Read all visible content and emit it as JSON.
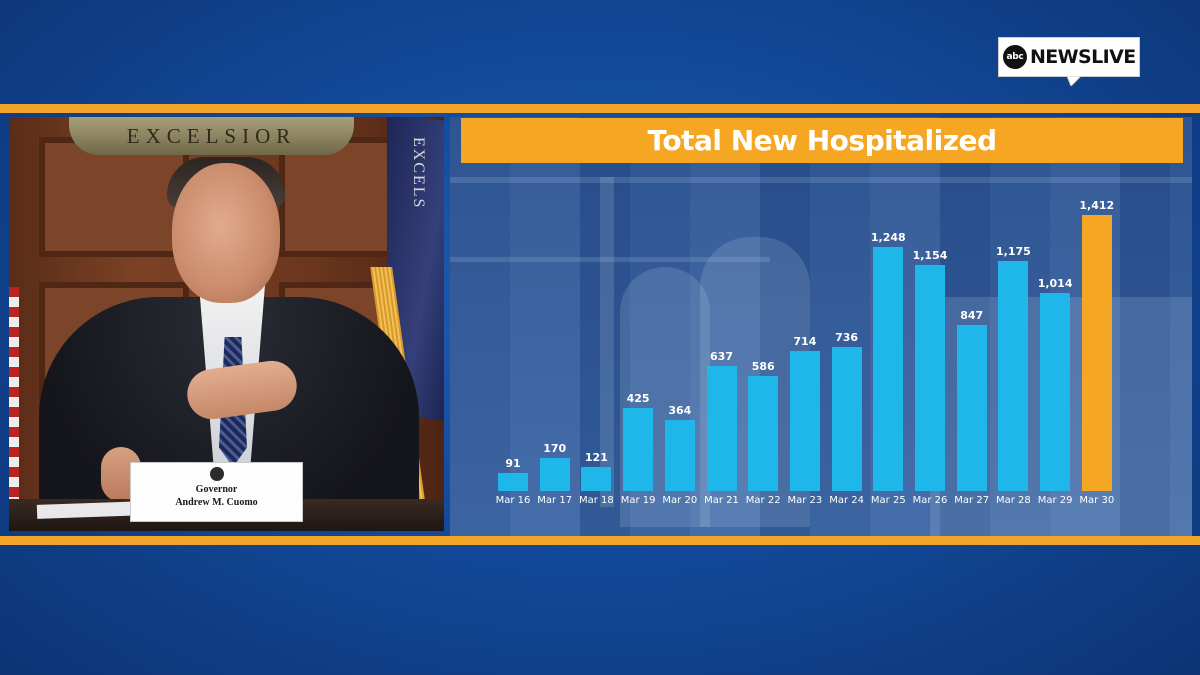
{
  "broadcast": {
    "logo_abc": "abc",
    "logo_text": "NEWSLIVE",
    "stripe_color": "#f3a52a",
    "background_color": "#134a9a"
  },
  "video": {
    "seal_text": "EXCELSIOR",
    "flag_text": "EXCELS",
    "nameplate_line1": "Governor",
    "nameplate_line2": "Andrew M. Cuomo"
  },
  "chart_data": {
    "type": "bar",
    "title": "Total New Hospitalized",
    "categories": [
      "Mar 16",
      "Mar 17",
      "Mar 18",
      "Mar 19",
      "Mar 20",
      "Mar 21",
      "Mar 22",
      "Mar 23",
      "Mar 24",
      "Mar 25",
      "Mar 26",
      "Mar 27",
      "Mar 28",
      "Mar 29",
      "Mar 30"
    ],
    "values": [
      91,
      170,
      121,
      425,
      364,
      637,
      586,
      714,
      736,
      1248,
      1154,
      847,
      1175,
      1014,
      1412
    ],
    "value_labels": [
      "91",
      "170",
      "121",
      "425",
      "364",
      "637",
      "586",
      "714",
      "736",
      "1,248",
      "1,154",
      "847",
      "1,175",
      "1,014",
      "1,412"
    ],
    "highlighted_category": "Mar 30",
    "bar_color": "#1fb6ea",
    "highlight_color": "#f5a623",
    "title_background": "#f5a623",
    "ylim": [
      0,
      1412
    ],
    "grid": false,
    "legend": "none"
  }
}
